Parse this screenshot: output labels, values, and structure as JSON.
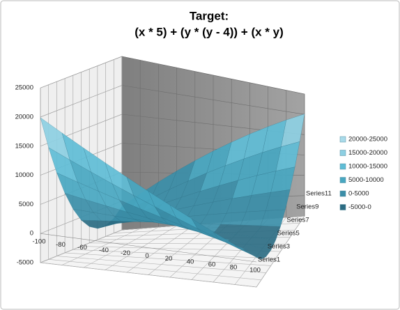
{
  "chart_data": {
    "type": "surface",
    "title": [
      "Target:",
      "(x * 5) + (y * (y - 4)) + (x * y)"
    ],
    "categories": [
      -100,
      -80,
      -60,
      -40,
      -20,
      0,
      20,
      40,
      60,
      80,
      100
    ],
    "series": [
      {
        "name": "Series1",
        "values": [
          19900,
          18000,
          16100,
          14200,
          12300,
          10400,
          8500,
          6600,
          4700,
          2800,
          900
        ]
      },
      {
        "name": null,
        "values": [
          14220,
          12720,
          11220,
          9720,
          8220,
          6720,
          5220,
          3720,
          2220,
          720,
          -780
        ]
      },
      {
        "name": "Series3",
        "values": [
          9340,
          8240,
          7140,
          6040,
          4940,
          3840,
          2740,
          1640,
          540,
          -560,
          -1660
        ]
      },
      {
        "name": null,
        "values": [
          5260,
          4560,
          3860,
          3160,
          2460,
          1760,
          1060,
          360,
          -340,
          -1040,
          -1740
        ]
      },
      {
        "name": "Series5",
        "values": [
          1980,
          1680,
          1380,
          1080,
          780,
          480,
          180,
          -120,
          -420,
          -720,
          -1020
        ]
      },
      {
        "name": null,
        "values": [
          -500,
          -400,
          -300,
          -200,
          -100,
          0,
          100,
          200,
          300,
          400,
          500
        ]
      },
      {
        "name": "Series7",
        "values": [
          -2180,
          -1680,
          -1180,
          -680,
          -180,
          320,
          820,
          1320,
          1820,
          2320,
          2820
        ]
      },
      {
        "name": null,
        "values": [
          -3060,
          -2160,
          -1260,
          -360,
          540,
          1440,
          2340,
          3240,
          4140,
          5040,
          5940
        ]
      },
      {
        "name": "Series9",
        "values": [
          -3140,
          -1840,
          -540,
          760,
          2060,
          3360,
          4660,
          5960,
          7260,
          8560,
          9860
        ]
      },
      {
        "name": null,
        "values": [
          -2420,
          -720,
          980,
          2680,
          4380,
          6080,
          7780,
          9480,
          11180,
          12880,
          14580
        ]
      },
      {
        "name": "Series11",
        "values": [
          -900,
          1200,
          3300,
          5400,
          7500,
          9600,
          11700,
          13800,
          15900,
          18000,
          20100
        ]
      }
    ],
    "zlim": [
      -5000,
      25000
    ],
    "zticks": [
      -5000,
      0,
      5000,
      10000,
      15000,
      20000,
      25000
    ],
    "grid": true,
    "legend_position": "right",
    "legend": [
      {
        "name": "20000-25000",
        "color": "#a9dbea"
      },
      {
        "name": "15000-20000",
        "color": "#8dcfe2"
      },
      {
        "name": "10000-15000",
        "color": "#5fbdd6"
      },
      {
        "name": "5000-10000",
        "color": "#48a7c1"
      },
      {
        "name": "0-5000",
        "color": "#3b8ea8"
      },
      {
        "name": "-5000-0",
        "color": "#2c6c83"
      }
    ]
  }
}
